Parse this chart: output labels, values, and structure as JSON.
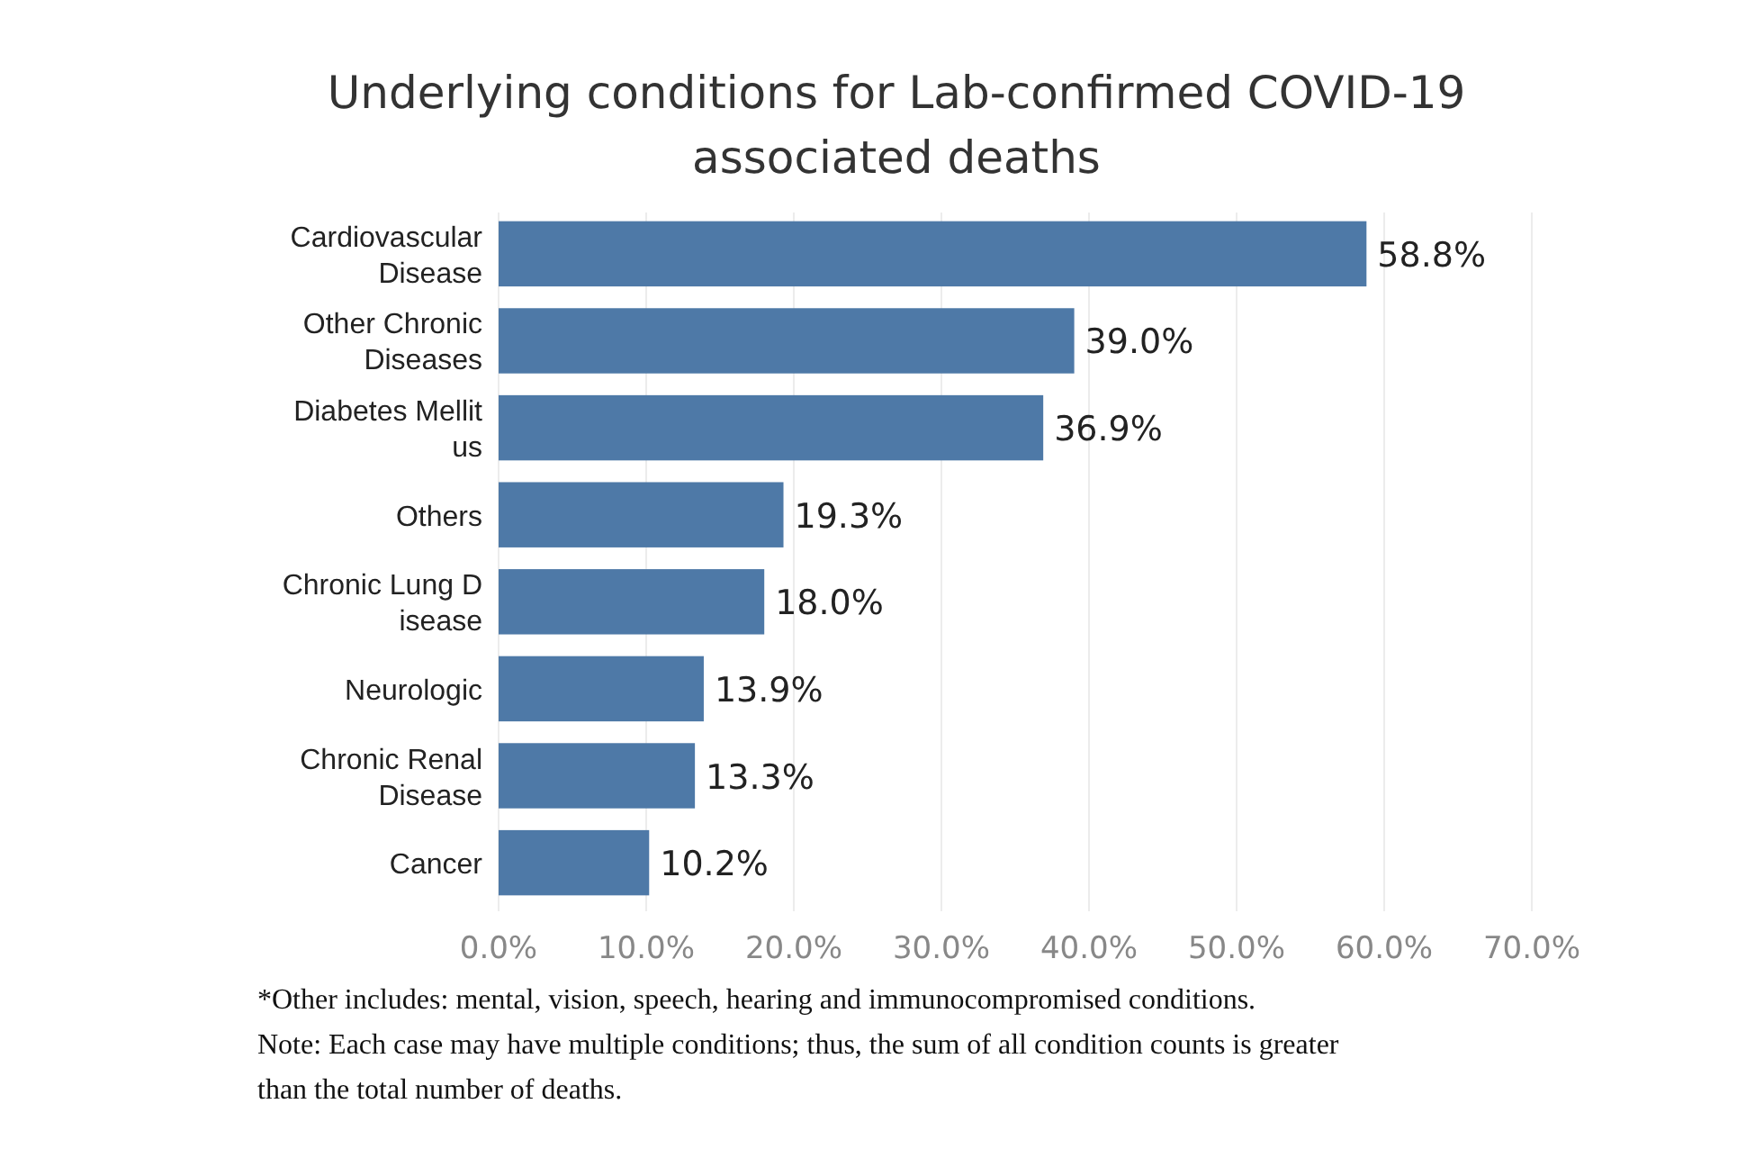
{
  "chart_data": {
    "type": "bar",
    "orientation": "horizontal",
    "title": "Underlying conditions for Lab-confirmed COVID-19 associated deaths",
    "categories": [
      "Cardiovascular\nDisease",
      "Other Chronic\nDiseases",
      "Diabetes Mellit\nus",
      "Others",
      "Chronic Lung D\nisease",
      "Neurologic",
      "Chronic Renal\nDisease",
      "Cancer"
    ],
    "values": [
      58.8,
      39.0,
      36.9,
      19.3,
      18.0,
      13.9,
      13.3,
      10.2
    ],
    "value_labels": [
      "58.8%",
      "39.0%",
      "36.9%",
      "19.3%",
      "18.0%",
      "13.9%",
      "13.3%",
      "10.2%"
    ],
    "color": "#4e79a7",
    "xlim": [
      0,
      70
    ],
    "xticks": [
      {
        "value": 0,
        "label": "0.0%"
      },
      {
        "value": 10,
        "label": "10.0%"
      },
      {
        "value": 20,
        "label": "20.0%"
      },
      {
        "value": 30,
        "label": "30.0%"
      },
      {
        "value": 40,
        "label": "40.0%"
      },
      {
        "value": 50,
        "label": "50.0%"
      },
      {
        "value": 60,
        "label": "60.0%"
      },
      {
        "value": 70,
        "label": "70.0%"
      }
    ],
    "grid": "x",
    "annotations": [
      "*Other includes: mental, vision, speech, hearing and immunocompromised conditions.",
      "Note: Each case may have multiple conditions; thus, the sum of all condition counts is greater than the total number of deaths."
    ]
  }
}
